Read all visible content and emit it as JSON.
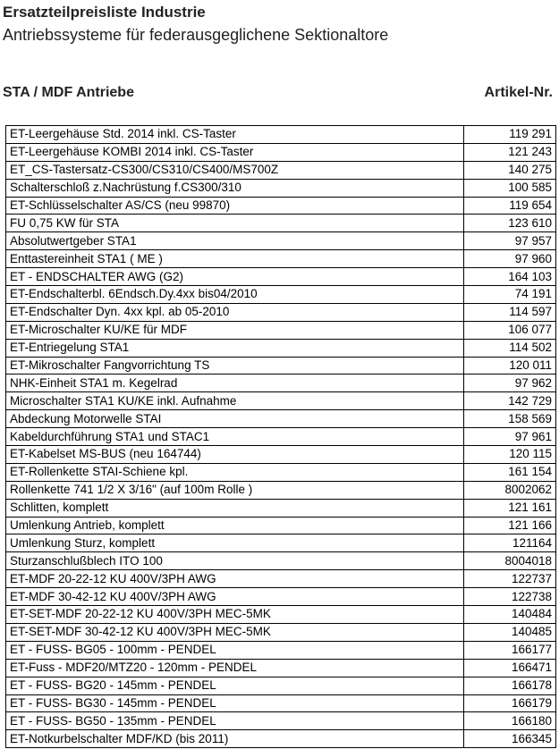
{
  "header": {
    "title": "Ersatzteilpreisliste Industrie",
    "subtitle": "Antriebssysteme für federausgeglichene Sektionaltore"
  },
  "table": {
    "section": "STA / MDF Antriebe",
    "column": "Artikel-Nr.",
    "rows": [
      [
        "ET-Leergehäuse Std. 2014 inkl. CS-Taster",
        "119 291"
      ],
      [
        "ET-Leergehäuse KOMBI 2014 inkl. CS-Taster",
        "121 243"
      ],
      [
        "ET_CS-Tastersatz-CS300/CS310/CS400/MS700Z",
        "140 275"
      ],
      [
        "Schalterschloß z.Nachrüstung f.CS300/310",
        "100 585"
      ],
      [
        "ET-Schlüsselschalter AS/CS (neu 99870)",
        "119 654"
      ],
      [
        "FU 0,75 KW für STA",
        "123 610"
      ],
      [
        "Absolutwertgeber STA1",
        "97 957"
      ],
      [
        "Enttastereinheit STA1 ( ME )",
        "97 960"
      ],
      [
        "ET - ENDSCHALTER AWG (G2)",
        "164 103"
      ],
      [
        "ET-Endschalterbl. 6Endsch.Dy.4xx bis04/2010",
        "74 191"
      ],
      [
        "ET-Endschalter Dyn. 4xx kpl. ab 05-2010",
        "114 597"
      ],
      [
        "ET-Microschalter KU/KE für MDF",
        "106 077"
      ],
      [
        "ET-Entriegelung STA1",
        "114 502"
      ],
      [
        "ET-Mikroschalter Fangvorrichtung TS",
        "120 011"
      ],
      [
        "NHK-Einheit STA1 m. Kegelrad",
        "97 962"
      ],
      [
        "Microschalter STA1 KU/KE inkl. Aufnahme",
        "142 729"
      ],
      [
        "Abdeckung Motorwelle STAI",
        "158 569"
      ],
      [
        "Kabeldurchführung STA1 und STAC1",
        "97 961"
      ],
      [
        "ET-Kabelset MS-BUS (neu 164744)",
        "120 115"
      ],
      [
        "ET-Rollenkette STAI-Schiene kpl.",
        "161 154"
      ],
      [
        "Rollenkette 741 1/2 X 3/16\" (auf 100m Rolle )",
        "8002062"
      ],
      [
        "Schlitten, komplett",
        "121 161"
      ],
      [
        "Umlenkung Antrieb, komplett",
        "121 166"
      ],
      [
        "Umlenkung Sturz, komplett",
        "121164"
      ],
      [
        "Sturzanschlußblech ITO 100",
        "8004018"
      ],
      [
        "ET-MDF 20-22-12 KU 400V/3PH AWG",
        "122737"
      ],
      [
        "ET-MDF 30-42-12 KU 400V/3PH AWG",
        "122738"
      ],
      [
        "ET-SET-MDF 20-22-12 KU 400V/3PH MEC-5MK",
        "140484"
      ],
      [
        "ET-SET-MDF 30-42-12 KU 400V/3PH MEC-5MK",
        "140485"
      ],
      [
        "ET - FUSS- BG05 - 100mm - PENDEL",
        "166177"
      ],
      [
        "ET-Fuss - MDF20/MTZ20 - 120mm - PENDEL",
        "166471"
      ],
      [
        "ET - FUSS- BG20 - 145mm - PENDEL",
        "166178"
      ],
      [
        "ET - FUSS- BG30 - 145mm - PENDEL",
        "166179"
      ],
      [
        "ET - FUSS- BG50 - 135mm - PENDEL",
        "166180"
      ],
      [
        "ET-Notkurbelschalter MDF/KD (bis 2011)",
        "166345"
      ]
    ]
  }
}
